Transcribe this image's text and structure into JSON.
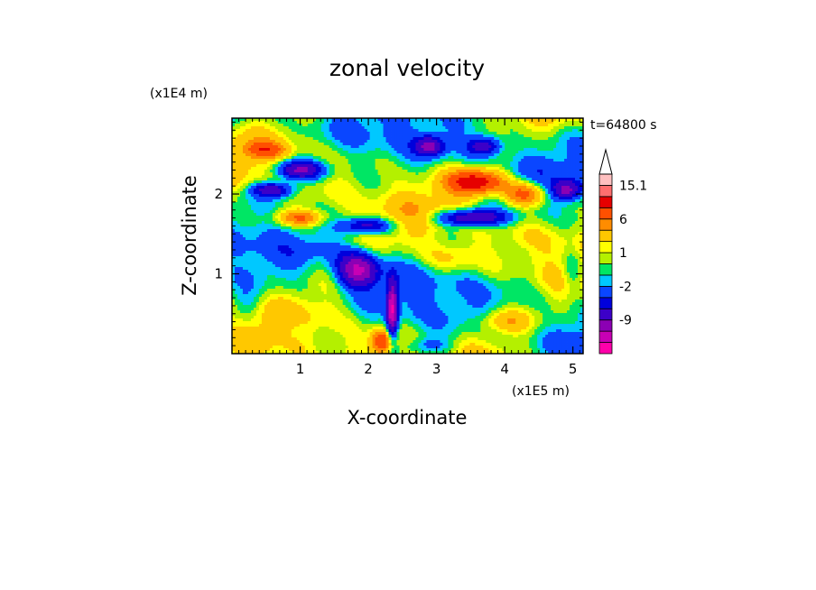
{
  "chart_data": {
    "type": "heatmap",
    "title": "zonal velocity",
    "xlabel": "X-coordinate",
    "ylabel": "Z-coordinate",
    "x_unit": "(x1E5 m)",
    "y_unit": "(x1E4 m)",
    "time_label": "t=64800 s",
    "xlim": [
      0,
      5.15
    ],
    "ylim": [
      0,
      2.95
    ],
    "x_ticks": [
      "1",
      "2",
      "3",
      "4",
      "5"
    ],
    "y_ticks": [
      "1",
      "2"
    ],
    "x_tick_values": [
      1,
      2,
      3,
      4,
      5
    ],
    "y_tick_values": [
      1,
      2
    ],
    "colorbar": {
      "labels": [
        "15.1",
        "6",
        "1",
        "-2",
        "-9"
      ],
      "label_levels": [
        15.1,
        6,
        1,
        -2,
        -9
      ],
      "levels": [
        -15,
        -12,
        -9,
        -6,
        -4,
        -2,
        -1,
        0,
        1,
        2,
        4,
        6,
        9,
        12,
        15.1
      ],
      "colors": [
        "#ff00aa",
        "#c800b4",
        "#8c00b4",
        "#3c00c8",
        "#0000dc",
        "#0a46ff",
        "#00c8ff",
        "#00e664",
        "#b4f000",
        "#ffff00",
        "#ffc800",
        "#ff8c00",
        "#ff5000",
        "#e60000",
        "#ff6e6e",
        "#ffc0c0"
      ],
      "extend": "max"
    },
    "grid": false
  }
}
